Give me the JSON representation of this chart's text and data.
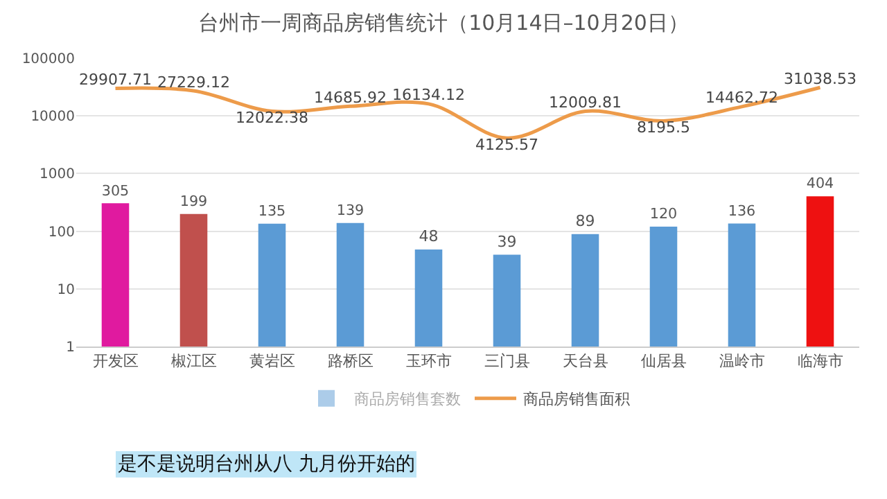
{
  "chart_data": {
    "type": "bar",
    "title": "台州市一周商品房销售统计（10月14日–10月20日）",
    "categories": [
      "开发区",
      "椒江区",
      "黄岩区",
      "路桥区",
      "玉环市",
      "三门县",
      "天台县",
      "仙居县",
      "温岭市",
      "临海市"
    ],
    "series": [
      {
        "name": "商品房销售套数",
        "color": "#5b9bd5",
        "colors": [
          "#e01a9f",
          "#c0504d",
          "#5b9bd5",
          "#5b9bd5",
          "#5b9bd5",
          "#5b9bd5",
          "#5b9bd5",
          "#5b9bd5",
          "#5b9bd5",
          "#ee1111"
        ],
        "values": [
          305,
          199,
          135,
          139,
          48,
          39,
          89,
          120,
          136,
          404
        ]
      },
      {
        "name": "商品房销售面积",
        "type": "line",
        "color": "#ed9b4a",
        "values": [
          29907.71,
          27229.12,
          12022.38,
          14685.92,
          16134.12,
          4125.57,
          12009.81,
          8195.5,
          14462.72,
          31038.53
        ]
      }
    ],
    "log": true,
    "ylim": [
      1,
      100000
    ],
    "yticks": [
      1,
      10,
      100,
      1000,
      10000,
      100000
    ],
    "grid": "y",
    "legend": "bottom",
    "data_labels": true,
    "marker": "none",
    "annotations": [
      "是不是说明台州从八 九月份开始的"
    ]
  }
}
